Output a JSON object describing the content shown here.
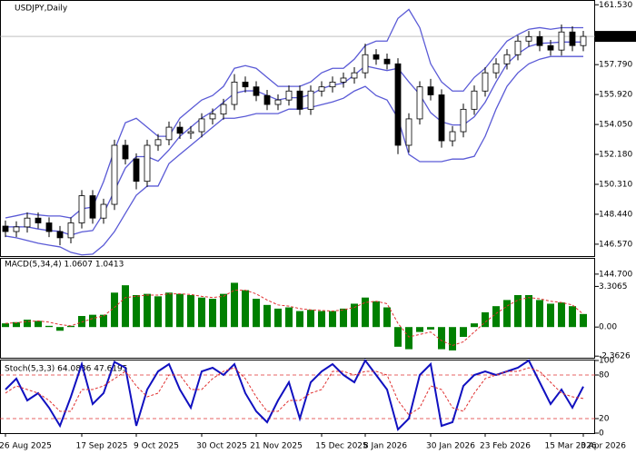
{
  "chart_data": [
    {
      "type": "candlestick",
      "title": "USDJPY,Daily",
      "categories": [
        "26 Aug 2025",
        null,
        null,
        null,
        null,
        null,
        null,
        "17 Sep 2025",
        null,
        null,
        null,
        null,
        "9 Oct 2025",
        null,
        null,
        null,
        null,
        null,
        "30 Oct 2025",
        null,
        null,
        null,
        null,
        "21 Nov 2025",
        null,
        null,
        null,
        null,
        null,
        "15 Dec 2025",
        null,
        null,
        null,
        "8 Jan 2026",
        null,
        null,
        null,
        null,
        null,
        "30 Jan 2026",
        null,
        null,
        null,
        null,
        "23 Feb 2026",
        null,
        null,
        null,
        null,
        null,
        "15 Mar 2026",
        null,
        null,
        "3 Apr 2026"
      ],
      "open": [
        147.7,
        147.36,
        147.65,
        148.2,
        147.9,
        147.36,
        146.97,
        147.9,
        149.6,
        148.2,
        149.06,
        152.75,
        151.9,
        150.5,
        152.75,
        153.1,
        153.88,
        153.5,
        153.6,
        154.4,
        154.7,
        155.3,
        156.7,
        156.4,
        155.86,
        155.3,
        155.58,
        156.14,
        155.0,
        156.14,
        156.4,
        156.7,
        156.95,
        157.28,
        158.41,
        158.13,
        157.84,
        152.75,
        154.4,
        156.4,
        155.9,
        153.03,
        153.6,
        155.0,
        156.14,
        157.28,
        157.84,
        158.41,
        159.26,
        159.54,
        158.98,
        158.7,
        159.83,
        158.98
      ],
      "high": [
        148.05,
        148.0,
        148.55,
        148.55,
        148.25,
        147.71,
        148.25,
        149.95,
        149.95,
        149.41,
        153.1,
        153.1,
        152.25,
        153.1,
        153.45,
        154.23,
        154.23,
        153.95,
        154.75,
        155.05,
        155.65,
        157.2,
        157.05,
        156.75,
        156.21,
        155.93,
        156.49,
        156.49,
        156.49,
        156.75,
        157.05,
        157.3,
        157.63,
        159.1,
        158.76,
        158.48,
        158.19,
        154.75,
        156.75,
        156.9,
        156.25,
        153.95,
        155.35,
        156.49,
        157.63,
        158.19,
        158.76,
        159.61,
        159.89,
        159.89,
        159.33,
        160.3,
        160.18,
        159.9
      ],
      "low": [
        147.01,
        147.01,
        147.3,
        147.55,
        147.01,
        146.5,
        146.62,
        147.55,
        147.85,
        147.85,
        148.71,
        151.55,
        150.0,
        150.15,
        152.4,
        152.75,
        153.15,
        153.15,
        153.25,
        154.05,
        154.35,
        154.95,
        156.05,
        155.51,
        154.95,
        154.95,
        155.23,
        154.65,
        154.65,
        155.79,
        156.05,
        156.35,
        156.6,
        156.93,
        157.78,
        157.49,
        152.2,
        152.3,
        154.05,
        155.55,
        152.6,
        152.68,
        153.25,
        154.65,
        155.79,
        156.93,
        157.49,
        158.06,
        158.91,
        158.63,
        158.35,
        158.35,
        158.63,
        158.63
      ],
      "close": [
        147.36,
        147.65,
        148.2,
        147.9,
        147.36,
        146.97,
        147.9,
        149.6,
        148.2,
        149.06,
        152.75,
        151.9,
        150.5,
        152.75,
        153.1,
        153.88,
        153.5,
        153.6,
        154.4,
        154.7,
        155.3,
        156.7,
        156.4,
        155.86,
        155.3,
        155.58,
        156.14,
        155.0,
        156.14,
        156.4,
        156.7,
        156.95,
        157.28,
        158.41,
        158.13,
        157.84,
        152.75,
        154.4,
        156.4,
        155.9,
        153.03,
        153.6,
        155.0,
        156.14,
        157.28,
        157.84,
        158.41,
        159.26,
        159.54,
        158.98,
        158.7,
        159.83,
        158.98,
        159.554
      ],
      "bands": {
        "color": "#5a5ad6",
        "upper": [
          148.21,
          148.35,
          148.5,
          148.4,
          148.33,
          148.33,
          148.21,
          148.78,
          148.89,
          150.48,
          152.46,
          154.16,
          154.44,
          153.88,
          153.31,
          153.31,
          154.44,
          155.01,
          155.58,
          155.86,
          156.43,
          157.56,
          157.73,
          157.56,
          156.99,
          156.43,
          156.43,
          156.43,
          156.71,
          157.28,
          157.56,
          157.56,
          158.13,
          158.98,
          159.26,
          159.26,
          160.68,
          161.24,
          160.1,
          157.84,
          156.71,
          156.14,
          156.14,
          156.99,
          157.56,
          158.41,
          159.26,
          159.66,
          160.0,
          160.1,
          160.0,
          160.1,
          160.1,
          160.1
        ],
        "middle": [
          147.65,
          147.66,
          147.65,
          147.52,
          147.42,
          147.37,
          147.14,
          147.34,
          147.42,
          148.5,
          149.91,
          151.33,
          152.04,
          152.04,
          151.76,
          152.46,
          153.31,
          153.88,
          154.45,
          154.87,
          155.44,
          156.0,
          156.15,
          156.15,
          155.86,
          155.58,
          155.72,
          155.72,
          155.92,
          156.29,
          156.51,
          156.63,
          157.14,
          157.71,
          157.56,
          157.42,
          157.56,
          156.71,
          155.92,
          154.79,
          154.22,
          154.02,
          154.02,
          154.53,
          155.44,
          156.71,
          157.85,
          158.47,
          158.92,
          159.12,
          159.15,
          159.2,
          159.2,
          159.2
        ],
        "lower": [
          147.08,
          146.97,
          146.8,
          146.63,
          146.51,
          146.4,
          146.06,
          145.9,
          145.95,
          146.51,
          147.36,
          148.5,
          149.63,
          150.2,
          150.2,
          151.61,
          152.18,
          152.74,
          153.31,
          153.88,
          154.44,
          154.44,
          154.56,
          154.73,
          154.73,
          154.73,
          155.01,
          155.01,
          155.12,
          155.29,
          155.46,
          155.69,
          156.14,
          156.43,
          155.86,
          155.58,
          154.44,
          152.18,
          151.73,
          151.73,
          151.73,
          151.89,
          151.89,
          152.06,
          153.31,
          155.01,
          156.43,
          157.28,
          157.84,
          158.13,
          158.3,
          158.3,
          158.3,
          158.3
        ]
      },
      "last_price": 159.554,
      "ylim": [
        145.8,
        161.8
      ],
      "yticks": [
        {
          "value": 161.53,
          "label": "161.530"
        },
        {
          "value": 157.79,
          "label": "157.790"
        },
        {
          "value": 155.92,
          "label": "155.920"
        },
        {
          "value": 154.05,
          "label": "154.050"
        },
        {
          "value": 152.18,
          "label": "152.180"
        },
        {
          "value": 150.31,
          "label": "150.310"
        },
        {
          "value": 148.44,
          "label": "148.440"
        },
        {
          "value": 146.57,
          "label": "146.570"
        },
        {
          "value": 144.7,
          "label": "144.700"
        }
      ]
    },
    {
      "type": "macd",
      "title": "MACD(5,34,4) 1.0607 1.0413",
      "color": "#008000",
      "signal_color": "#e03030",
      "values": [
        0.3,
        0.4,
        0.6,
        0.5,
        0.1,
        -0.3,
        0.1,
        0.9,
        1.0,
        1.0,
        2.8,
        3.4,
        2.6,
        2.7,
        2.5,
        2.8,
        2.7,
        2.6,
        2.4,
        2.3,
        2.7,
        3.6,
        3.0,
        2.3,
        1.8,
        1.5,
        1.6,
        1.3,
        1.4,
        1.3,
        1.3,
        1.5,
        1.9,
        2.4,
        2.1,
        1.6,
        -1.6,
        -1.8,
        -0.4,
        -0.2,
        -1.8,
        -1.9,
        -0.8,
        0.3,
        1.2,
        1.7,
        2.2,
        2.6,
        2.6,
        2.2,
        1.9,
        2.0,
        1.7,
        1.0607
      ],
      "signal": [
        0.3,
        0.35,
        0.45,
        0.5,
        0.4,
        0.2,
        0.1,
        0.4,
        0.7,
        0.9,
        1.6,
        2.4,
        2.5,
        2.6,
        2.6,
        2.7,
        2.7,
        2.65,
        2.5,
        2.4,
        2.5,
        3.0,
        3.0,
        2.7,
        2.2,
        1.8,
        1.7,
        1.5,
        1.4,
        1.35,
        1.3,
        1.4,
        1.6,
        2.0,
        2.1,
        1.9,
        0.3,
        -0.8,
        -0.6,
        -0.4,
        -1.1,
        -1.5,
        -1.2,
        -0.4,
        0.4,
        1.1,
        1.7,
        2.2,
        2.4,
        2.3,
        2.1,
        2.0,
        1.8,
        1.0413
      ],
      "ylim": [
        -2.57,
        5.59
      ],
      "yticks": [
        3.3065,
        {
          "value": 0,
          "label": "0.00"
        },
        -2.3626
      ]
    },
    {
      "type": "stochastic",
      "title": "Stoch(5,3,3) 64.0836 47.6195",
      "color": "#1010c0",
      "signal_color": "#e03030",
      "values": [
        60,
        75,
        45,
        55,
        35,
        10,
        50,
        95,
        40,
        55,
        98,
        90,
        10,
        60,
        85,
        95,
        60,
        35,
        85,
        90,
        80,
        95,
        55,
        30,
        15,
        45,
        70,
        20,
        70,
        85,
        95,
        80,
        70,
        100,
        80,
        60,
        5,
        20,
        80,
        95,
        10,
        15,
        65,
        80,
        85,
        80,
        85,
        90,
        100,
        70,
        40,
        60,
        35,
        64.0836
      ],
      "signal": [
        55,
        65,
        60,
        55,
        45,
        30,
        30,
        60,
        60,
        65,
        75,
        85,
        65,
        50,
        55,
        80,
        80,
        60,
        60,
        75,
        85,
        90,
        75,
        50,
        30,
        30,
        45,
        45,
        55,
        60,
        85,
        85,
        80,
        85,
        85,
        80,
        45,
        25,
        35,
        65,
        60,
        35,
        30,
        55,
        75,
        80,
        85,
        85,
        90,
        85,
        70,
        55,
        50,
        47.6195
      ],
      "levels": [
        20,
        80
      ],
      "ylim": [
        0,
        100
      ],
      "yticks": [
        100,
        80,
        20,
        0
      ]
    }
  ]
}
